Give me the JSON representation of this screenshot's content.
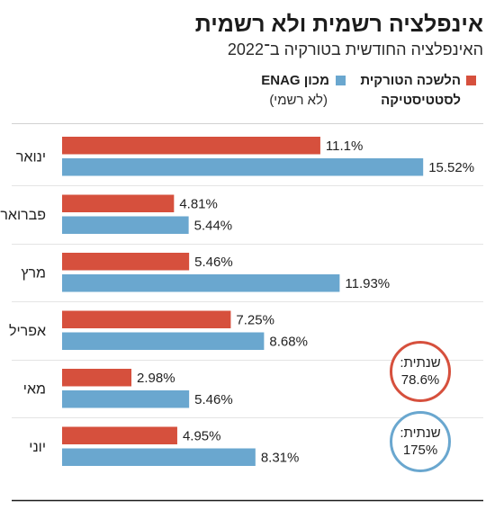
{
  "chart_data": {
    "type": "bar",
    "orientation": "horizontal",
    "title": "אינפלציה רשמית ולא רשמית",
    "subtitle": "האינפלציה החודשית בטורקיה ב־2022",
    "categories": [
      "ינואר",
      "פברואר",
      "מרץ",
      "אפריל",
      "מאי",
      "יוני"
    ],
    "grid": false,
    "legend_position": "top-right",
    "series": [
      {
        "name": "הלשכה הטורקית לסטטיסטיקה",
        "color": "#d6503d",
        "values": [
          11.1,
          4.81,
          5.46,
          7.25,
          2.98,
          4.95
        ],
        "labels": [
          "11.1%",
          "4.81%",
          "5.46%",
          "7.25%",
          "2.98%",
          "4.95%"
        ],
        "annual_label": "שנתית:",
        "annual_value": "78.6%"
      },
      {
        "name": "מכון ENAG",
        "note": "(לא רשמי)",
        "color": "#6aa7cf",
        "values": [
          15.52,
          5.44,
          11.93,
          8.68,
          5.46,
          8.31
        ],
        "labels": [
          "15.52%",
          "5.44%",
          "11.93%",
          "8.68%",
          "5.46%",
          "8.31%"
        ],
        "annual_label": "שנתית:",
        "annual_value": "175%"
      }
    ]
  }
}
